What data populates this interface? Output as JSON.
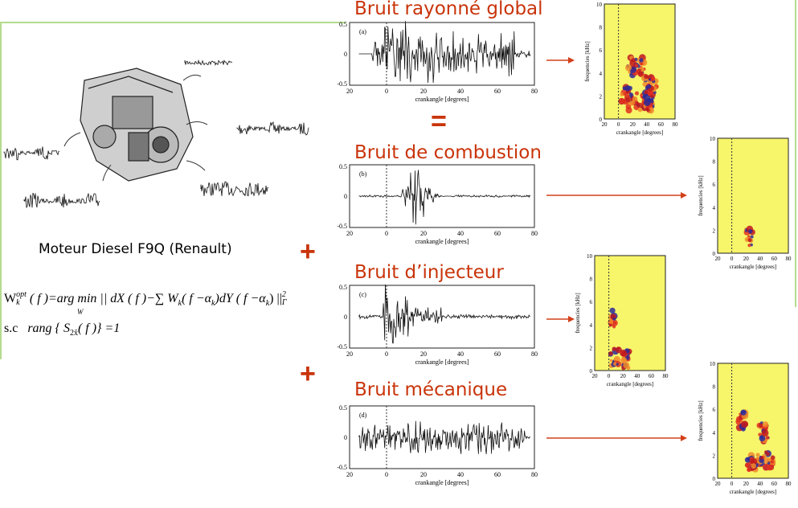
{
  "caption": "Moteur Diesel F9Q (Renault)",
  "formula": {
    "line1": "W_k^opt(f) = arg min_{W_k} || dX(f) − Σ_k W_k(f − α_k) dY(f − α_k) ||²_Γ",
    "line1_lhs": "W",
    "line1_sup": "opt",
    "line1_sub": "k",
    "line1_rest": "( f )=arg min || dX ( f )−∑ W",
    "line1_rest2": "( f −α",
    "line1_rest3": ")dY ( f −α",
    "line1_rest4": ") ||",
    "argmin_sub": "W",
    "sum_sub": "k",
    "norm_sup": "2",
    "norm_sub": "Γ",
    "line2_prefix": "s.c",
    "line2": "rang { S",
    "line2_sub": "2x̃",
    "line2_end": "( f )} =1"
  },
  "operators": {
    "equals": "=",
    "plus": "+"
  },
  "colors": {
    "title": "#c9340a",
    "arrow": "#d2401a",
    "frame": "#b5dc8e",
    "spectrogram_bg": "#f7f56a"
  },
  "panels": [
    {
      "title": "Bruit rayonné global",
      "label": "(a)"
    },
    {
      "title": "Bruit de combustion",
      "label": "(b)"
    },
    {
      "title": "Bruit d’injecteur",
      "label": "(c)"
    },
    {
      "title": "Bruit mécanique",
      "label": "(d)"
    }
  ],
  "signal_axes": {
    "yticks": [
      "0.5",
      "0",
      "-0.5"
    ],
    "xticks": [
      "20",
      "0",
      "20",
      "40",
      "60",
      "80"
    ],
    "xlabel": "crankangle [degrees]"
  },
  "spectrogram_axes": {
    "yticks": [
      "10",
      "8",
      "6",
      "4",
      "2",
      "0"
    ],
    "xticks": [
      "20",
      "0",
      "20",
      "40",
      "60",
      "80"
    ],
    "xlabel": "crankangle [degrees]",
    "ylabel": "frequencies [kHz]"
  }
}
